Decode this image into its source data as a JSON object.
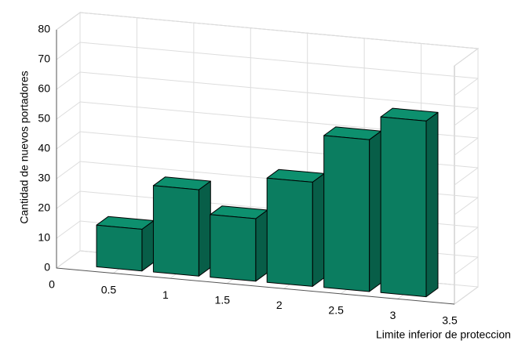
{
  "chart_data": {
    "type": "bar3",
    "x": [
      0.5,
      1,
      1.5,
      2,
      2.5,
      3
    ],
    "values": [
      14,
      29,
      21,
      35,
      51,
      59
    ],
    "color": "#0b7d60",
    "xlabel": "Limite inferior de proteccion",
    "ylabel": "Cantidad de nuevos portadores",
    "xlim": [
      0,
      3.5
    ],
    "xticks": [
      0,
      0.5,
      1,
      1.5,
      2,
      2.5,
      3,
      3.5
    ],
    "ylim": [
      0,
      80
    ],
    "yticks": [
      0,
      10,
      20,
      30,
      40,
      50,
      60,
      70,
      80
    ],
    "grid": true
  }
}
